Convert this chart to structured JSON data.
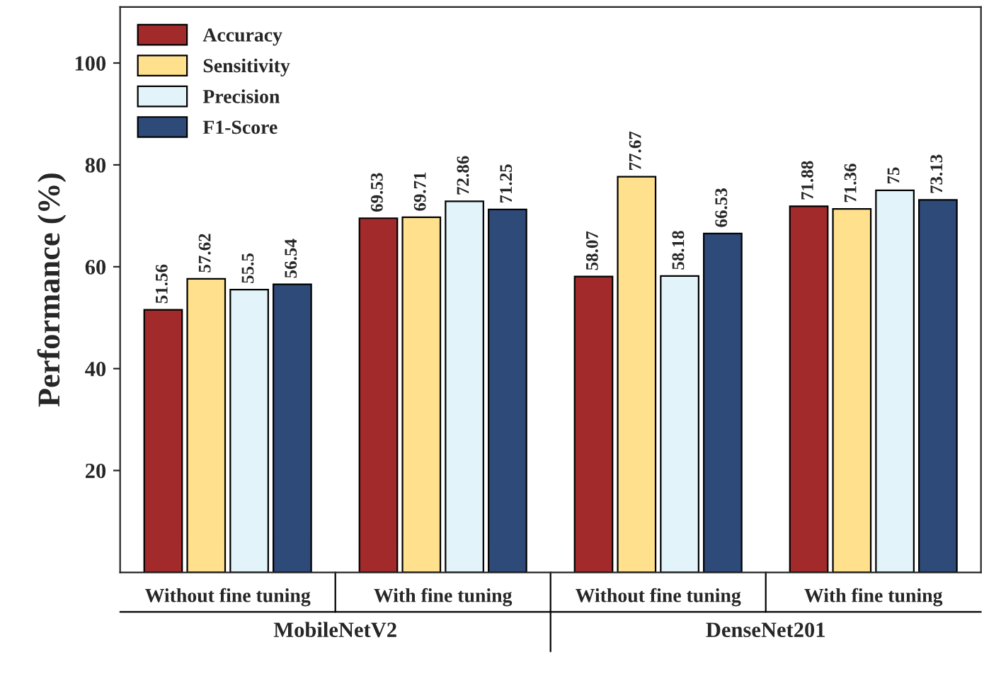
{
  "chart_data": {
    "type": "bar",
    "ylabel": "Performance (%)",
    "categories": [
      "Without fine tuning",
      "With fine tuning",
      "Without fine tuning",
      "With fine tuning"
    ],
    "series": [
      {
        "name": "Accuracy",
        "color": "#a32a2a",
        "values": [
          51.56,
          69.53,
          58.07,
          71.88
        ]
      },
      {
        "name": "Sensitivity",
        "color": "#ffe08c",
        "values": [
          57.62,
          69.71,
          77.67,
          71.36
        ]
      },
      {
        "name": "Precision",
        "color": "#e2f4f9",
        "values": [
          55.5,
          72.86,
          58.18,
          75
        ]
      },
      {
        "name": "F1-Score",
        "color": "#2d4a78",
        "values": [
          56.54,
          71.25,
          66.53,
          73.13
        ]
      }
    ],
    "ylim": [
      0,
      111
    ],
    "yticks": [
      20,
      40,
      60,
      80,
      100
    ],
    "data_labels": true,
    "legend": "top left",
    "grid": false,
    "annotations": [
      "MobileNetV2",
      "DenseNet201"
    ]
  }
}
